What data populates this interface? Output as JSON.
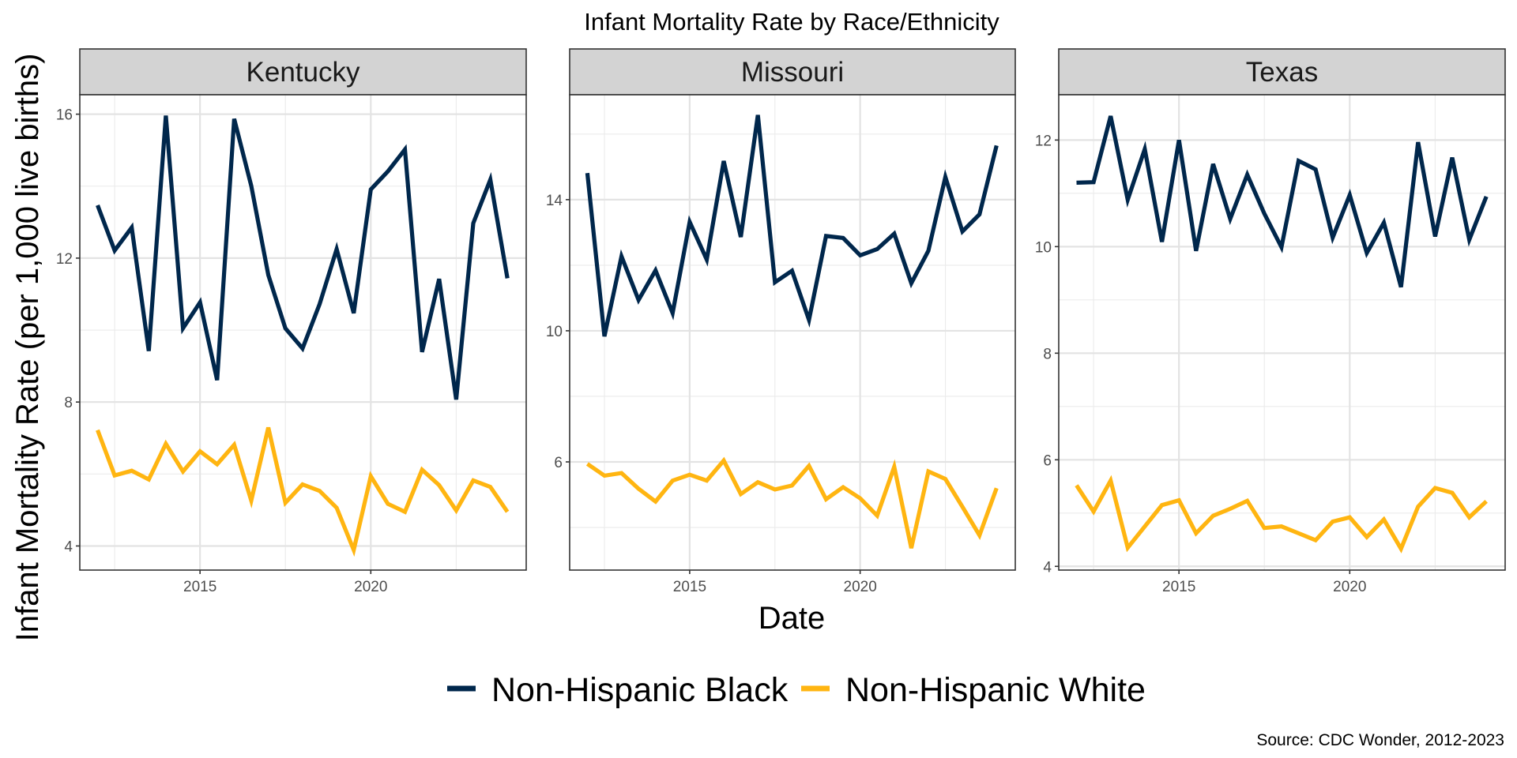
{
  "chart_data": {
    "type": "line",
    "title": "Infant Mortality Rate by Race/Ethnicity",
    "xlabel": "Date",
    "ylabel": "Infant Mortality Rate (per 1,000 live births)",
    "caption": "Source: CDC Wonder, 2012-2023",
    "legend": {
      "position": "bottom",
      "entries": [
        {
          "name": "Non-Hispanic Black",
          "color": "#00274C"
        },
        {
          "name": "Non-Hispanic White",
          "color": "#FFB511"
        }
      ]
    },
    "x": [
      2012.0,
      2012.5,
      2013.0,
      2013.5,
      2014.0,
      2014.5,
      2015.0,
      2015.5,
      2016.0,
      2016.5,
      2017.0,
      2017.5,
      2018.0,
      2018.5,
      2019.0,
      2019.5,
      2020.0,
      2020.5,
      2021.0,
      2021.5,
      2022.0,
      2022.5,
      2023.0,
      2023.5,
      2024.0
    ],
    "xlim": [
      2011.48,
      2024.55
    ],
    "x_ticks": [
      2015,
      2020
    ],
    "x_tick_labels": [
      "2015",
      "2020"
    ],
    "grid": true,
    "facets": [
      {
        "name": "Kentucky",
        "ylim": [
          3.33,
          16.54
        ],
        "y_ticks": [
          4,
          8,
          12,
          16
        ],
        "y_tick_labels": [
          "4",
          "8",
          "12",
          "16"
        ],
        "y_minor": [
          6,
          10,
          14
        ],
        "series": [
          {
            "name": "Non-Hispanic Black",
            "values": [
              13.47,
              12.21,
              12.85,
              9.42,
              15.96,
              10.05,
              10.77,
              8.61,
              15.87,
              14.01,
              11.53,
              10.05,
              9.49,
              10.72,
              12.25,
              10.47,
              13.91,
              14.41,
              15.02,
              9.39,
              11.42,
              8.07,
              12.97,
              14.18,
              11.44
            ]
          },
          {
            "name": "Non-Hispanic White",
            "values": [
              7.22,
              5.96,
              6.09,
              5.85,
              6.84,
              6.07,
              6.63,
              6.27,
              6.81,
              5.26,
              7.29,
              5.2,
              5.71,
              5.53,
              5.06,
              3.89,
              5.94,
              5.17,
              4.95,
              6.12,
              5.69,
              4.99,
              5.82,
              5.64,
              4.95
            ]
          }
        ]
      },
      {
        "name": "Missouri",
        "ylim": [
          2.7,
          17.2
        ],
        "y_ticks": [
          6,
          10,
          14
        ],
        "y_tick_labels": [
          "6",
          "10",
          "14"
        ],
        "y_minor": [
          4,
          8,
          12,
          16
        ],
        "series": [
          {
            "name": "Non-Hispanic Black",
            "values": [
              14.81,
              9.83,
              12.27,
              10.94,
              11.84,
              10.54,
              13.32,
              12.17,
              15.18,
              12.86,
              16.58,
              11.48,
              11.83,
              10.33,
              12.89,
              12.83,
              12.3,
              12.49,
              12.96,
              11.45,
              12.44,
              14.69,
              13.03,
              13.55,
              15.65
            ]
          },
          {
            "name": "Non-Hispanic White",
            "values": [
              5.94,
              5.58,
              5.66,
              5.18,
              4.79,
              5.43,
              5.61,
              5.43,
              6.04,
              5.02,
              5.38,
              5.16,
              5.28,
              5.88,
              4.86,
              5.23,
              4.89,
              4.36,
              5.85,
              3.37,
              5.71,
              5.48,
              4.63,
              3.76,
              5.2
            ]
          }
        ]
      },
      {
        "name": "Texas",
        "ylim": [
          3.93,
          12.85
        ],
        "y_ticks": [
          4,
          6,
          8,
          10,
          12
        ],
        "y_tick_labels": [
          "4",
          "6",
          "8",
          "10",
          "12"
        ],
        "y_minor": [
          5,
          7,
          9,
          11
        ],
        "series": [
          {
            "name": "Non-Hispanic Black",
            "values": [
              11.2,
              11.21,
              12.45,
              10.88,
              11.83,
              10.09,
              12.0,
              9.92,
              11.55,
              10.52,
              11.35,
              10.62,
              9.99,
              11.61,
              11.45,
              10.17,
              10.97,
              9.88,
              10.45,
              9.24,
              11.96,
              10.19,
              11.67,
              10.13,
              10.94
            ]
          },
          {
            "name": "Non-Hispanic White",
            "values": [
              5.52,
              5.03,
              5.61,
              4.35,
              4.75,
              5.15,
              5.24,
              4.62,
              4.95,
              5.08,
              5.23,
              4.72,
              4.75,
              4.62,
              4.49,
              4.84,
              4.92,
              4.55,
              4.88,
              4.33,
              5.12,
              5.47,
              5.38,
              4.92,
              5.22
            ]
          }
        ]
      }
    ]
  }
}
